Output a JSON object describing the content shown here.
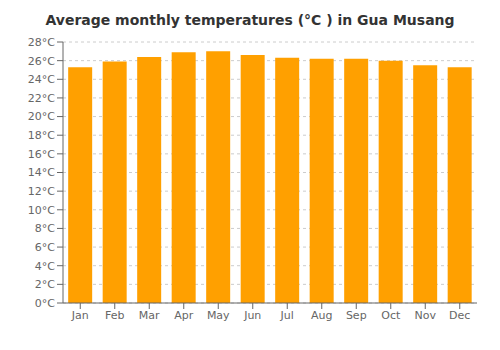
{
  "chart_data": {
    "type": "bar",
    "title": "Average monthly temperatures (°C ) in Gua Musang",
    "categories": [
      "Jan",
      "Feb",
      "Mar",
      "Apr",
      "May",
      "Jun",
      "Jul",
      "Aug",
      "Sep",
      "Oct",
      "Nov",
      "Dec"
    ],
    "values": [
      25.3,
      25.9,
      26.4,
      26.9,
      27.0,
      26.6,
      26.3,
      26.2,
      26.2,
      26.0,
      25.5,
      25.3
    ],
    "color": "#FFA000",
    "ylim": [
      0,
      28
    ],
    "yticks": [
      {
        "value": 0,
        "label": "0°C"
      },
      {
        "value": 2,
        "label": "2°C"
      },
      {
        "value": 4,
        "label": "4°C"
      },
      {
        "value": 6,
        "label": "6°C"
      },
      {
        "value": 8,
        "label": "8°C"
      },
      {
        "value": 10,
        "label": "10°C"
      },
      {
        "value": 12,
        "label": "12°C"
      },
      {
        "value": 14,
        "label": "14°C"
      },
      {
        "value": 16,
        "label": "16°C"
      },
      {
        "value": 18,
        "label": "18°C"
      },
      {
        "value": 20,
        "label": "20°C"
      },
      {
        "value": 22,
        "label": "22°C"
      },
      {
        "value": 24,
        "label": "24°C"
      },
      {
        "value": 26,
        "label": "26°C"
      },
      {
        "value": 28,
        "label": "28°C"
      }
    ],
    "grid": true
  }
}
